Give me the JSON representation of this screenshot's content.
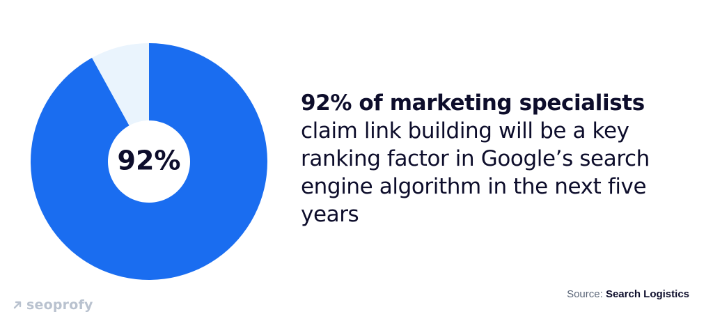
{
  "chart_data": {
    "type": "pie",
    "donut": true,
    "slices": [
      {
        "value": 92
      },
      {
        "value": 8
      }
    ],
    "center_label": "92%",
    "colors": [
      "#1a6df0",
      "#eaf4fd"
    ]
  },
  "statement": {
    "headline": "92% of marketing specialists",
    "body": "claim link building will be a key ranking factor in Google’s search engine algorithm in the next five years"
  },
  "brand": {
    "name": "seoprofy",
    "icon": "arrow-up-right-icon",
    "color": "#b9c2cf"
  },
  "source": {
    "label": "Source:",
    "name": "Search Logistics"
  }
}
